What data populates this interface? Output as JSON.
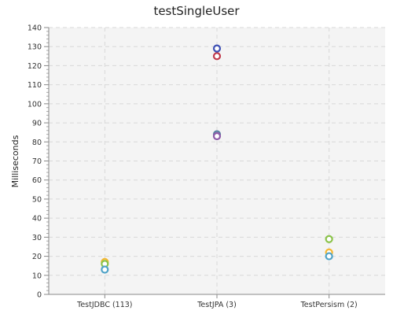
{
  "chart_data": {
    "type": "scatter",
    "title": "testSingleUser",
    "xlabel": "",
    "ylabel": "Milliseconds",
    "categories": [
      "TestJDBC (113)",
      "TestJPA (3)",
      "TestPersism (2)"
    ],
    "ylim": [
      0,
      140
    ],
    "y_major_step": 10,
    "y_minor_step": 2,
    "grid": true,
    "legend": "none",
    "series": [
      {
        "color": "#f5b731",
        "values": [
          17,
          null,
          22
        ]
      },
      {
        "color": "#8bc34a",
        "values": [
          16,
          null,
          29
        ]
      },
      {
        "color": "#4fa3c7",
        "values": [
          13,
          null,
          20
        ]
      },
      {
        "color": "#c0394b",
        "values": [
          null,
          125,
          null
        ]
      },
      {
        "color": "#3f51b5",
        "values": [
          null,
          129,
          null
        ]
      },
      {
        "color": "#5a7fa0",
        "values": [
          null,
          84,
          null
        ]
      },
      {
        "color": "#8e5aa8",
        "values": [
          null,
          83,
          null
        ]
      }
    ]
  }
}
